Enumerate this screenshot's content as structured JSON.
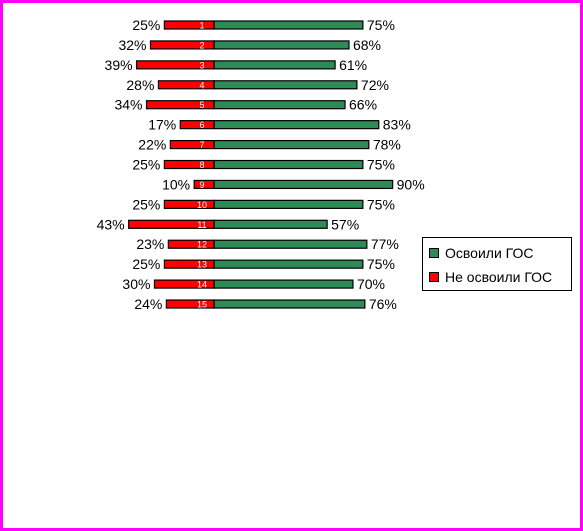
{
  "colors": {
    "mastered": "#2e8b57",
    "not_mastered": "#ff0000",
    "frame": "#ff00ff"
  },
  "chart_data": {
    "type": "bar",
    "orientation": "horizontal",
    "stacked": "diverging",
    "categories": [
      "1",
      "2",
      "3",
      "4",
      "5",
      "6",
      "7",
      "8",
      "9",
      "10",
      "11",
      "12",
      "13",
      "14",
      "15"
    ],
    "series": [
      {
        "name": "Освоили ГОС",
        "values": [
          75,
          68,
          61,
          72,
          66,
          83,
          78,
          75,
          90,
          75,
          57,
          77,
          75,
          70,
          76
        ],
        "labels": [
          "75%",
          "68%",
          "61%",
          "72%",
          "66%",
          "83%",
          "78%",
          "75%",
          "90%",
          "75%",
          "57%",
          "77%",
          "75%",
          "70%",
          "76%"
        ]
      },
      {
        "name": "Не освоили ГОС",
        "values": [
          25,
          32,
          39,
          28,
          34,
          17,
          22,
          25,
          10,
          25,
          43,
          23,
          25,
          30,
          24
        ],
        "labels": [
          "25%",
          "32%",
          "39%",
          "28%",
          "34%",
          "17%",
          "22%",
          "25%",
          "10%",
          "25%",
          "43%",
          "23%",
          "25%",
          "30%",
          "24%"
        ]
      }
    ],
    "legend": {
      "position": "right",
      "items": [
        "Освоили ГОС",
        "Не освоили ГОС"
      ]
    },
    "grid": false
  }
}
